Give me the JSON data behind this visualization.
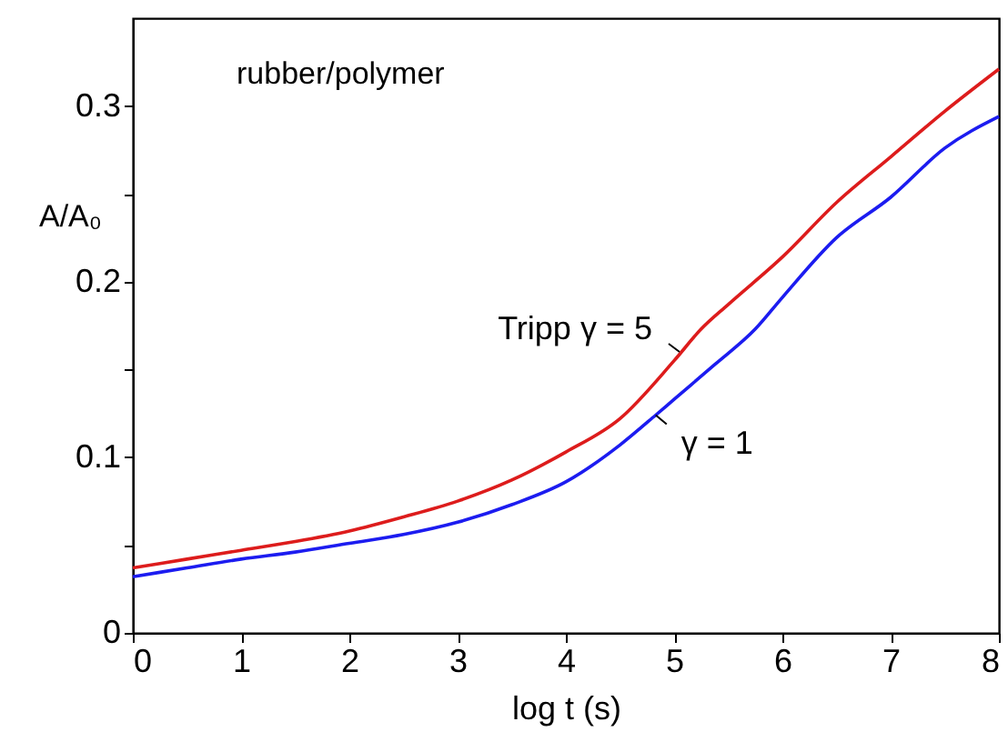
{
  "chart_data": {
    "type": "line",
    "xlabel": "log t (s)",
    "ylabel": "A/A₀",
    "xlim": [
      0,
      8
    ],
    "xticks": [
      0,
      1,
      2,
      3,
      4,
      5,
      6,
      7,
      8
    ],
    "ylim": [
      0,
      0.35
    ],
    "yticks": [
      0,
      {
        "value": 0.05,
        "label": null
      },
      0.1,
      {
        "value": 0.15,
        "label": null
      },
      0.2,
      {
        "value": 0.25,
        "label": null
      },
      0.3
    ],
    "grid": false,
    "marker": "none",
    "line_style": "solid",
    "series": [
      {
        "color": "#dd1c1c",
        "x": [
          0,
          0.5,
          1,
          1.5,
          2,
          2.5,
          3,
          3.5,
          4,
          4.5,
          5,
          5.25,
          5.5,
          6,
          6.5,
          7,
          7.5,
          8
        ],
        "values": [
          0.037,
          0.042,
          0.047,
          0.052,
          0.058,
          0.066,
          0.075,
          0.087,
          0.103,
          0.122,
          0.155,
          0.173,
          0.187,
          0.214,
          0.245,
          0.271,
          0.297,
          0.321
        ]
      },
      {
        "color": "#1c1cf0",
        "x": [
          0,
          0.5,
          1,
          1.5,
          2,
          2.5,
          3,
          3.5,
          4,
          4.5,
          4.83,
          5,
          5.38,
          5.75,
          6,
          6.5,
          7,
          7.5,
          8
        ],
        "values": [
          0.032,
          0.037,
          0.042,
          0.046,
          0.051,
          0.056,
          0.063,
          0.073,
          0.086,
          0.107,
          0.124,
          0.133,
          0.153,
          0.173,
          0.191,
          0.225,
          0.248,
          0.276,
          0.294
        ]
      }
    ],
    "annotations": [
      "rubber/polymer",
      {
        "text": "Tripp γ = 5",
        "x": 5.05,
        "y": 0.16
      },
      {
        "text": "γ = 1",
        "x": 4.83,
        "y": 0.124
      }
    ]
  }
}
